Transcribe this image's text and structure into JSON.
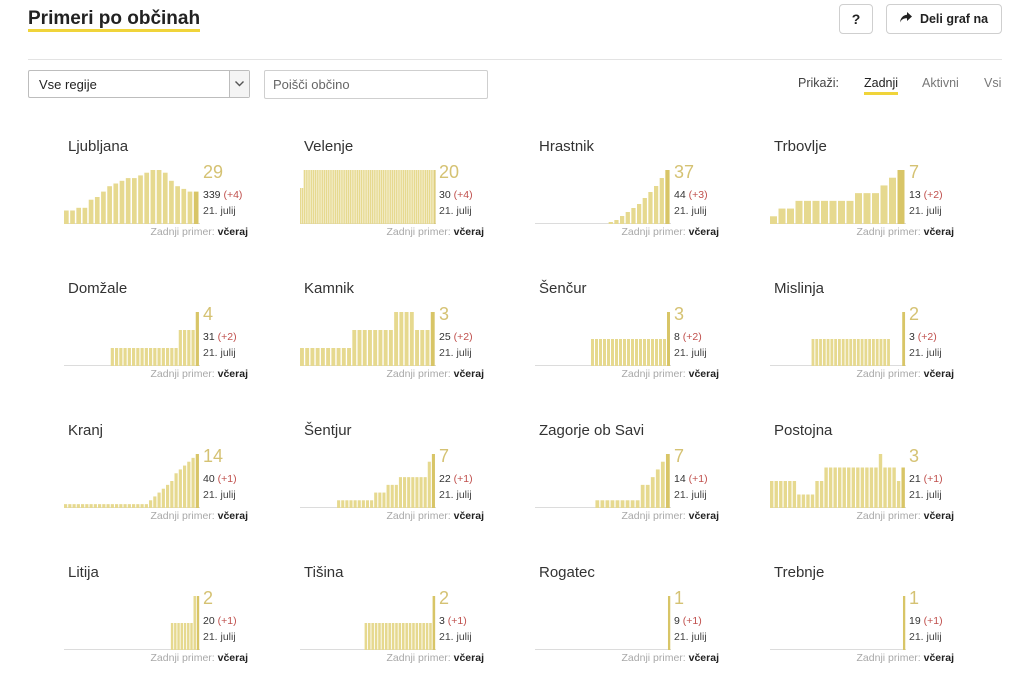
{
  "header": {
    "title": "Primeri po občinah",
    "help_label": "?",
    "share_label": "Deli graf na"
  },
  "filters": {
    "region_value": "Vse regije",
    "search_placeholder": "Poišči občino",
    "show_label": "Prikaži:",
    "show_options": [
      "Zadnji",
      "Aktivni",
      "Vsi"
    ],
    "active_option": "Zadnji"
  },
  "colors": {
    "accent": "#f0d43a",
    "bar": "#d8c567",
    "bar_light": "#e6d98f",
    "delta": "#c0504d"
  },
  "icons": {
    "share": "share-arrow-icon",
    "dropdown": "chevron-down-icon"
  },
  "last_case_label": "Zadnji primer:",
  "municipalities": [
    {
      "name": "Ljubljana",
      "today": "29",
      "total": "339",
      "delta": "(+4)",
      "date": "21. julij",
      "last_case": "včeraj",
      "bars": [
        5,
        5,
        6,
        6,
        9,
        10,
        12,
        14,
        15,
        16,
        17,
        17,
        18,
        19,
        20,
        20,
        19,
        16,
        14,
        13,
        12,
        12
      ]
    },
    {
      "name": "Velenje",
      "today": "20",
      "total": "30",
      "delta": "(+4)",
      "date": "21. julij",
      "last_case": "včeraj",
      "bars": [
        2,
        2,
        3,
        3,
        3,
        3,
        3,
        3,
        3,
        3,
        3,
        3,
        3,
        3,
        3,
        3,
        3,
        3,
        3,
        3,
        3,
        3,
        3,
        3,
        3,
        3,
        3,
        3,
        3,
        3,
        3,
        3,
        3,
        3,
        3,
        3,
        3,
        3,
        3,
        3,
        3,
        3,
        3,
        3,
        3,
        3,
        3,
        3,
        3,
        3,
        3,
        3,
        3,
        3,
        3,
        3,
        3,
        3,
        3,
        3,
        3,
        3,
        3,
        3,
        3,
        3,
        3,
        3,
        3,
        3,
        3,
        3,
        3,
        3
      ]
    },
    {
      "name": "Hrastnik",
      "today": "37",
      "total": "44",
      "delta": "(+3)",
      "date": "21. julij",
      "last_case": "včeraj",
      "bars": [
        0,
        0,
        0,
        0,
        0,
        0,
        0,
        0,
        0,
        0,
        0,
        0,
        0,
        1,
        2,
        4,
        6,
        8,
        10,
        13,
        16,
        19,
        23,
        27
      ]
    },
    {
      "name": "Trbovlje",
      "today": "7",
      "total": "13",
      "delta": "(+2)",
      "date": "21. julij",
      "last_case": "včeraj",
      "bars": [
        1,
        2,
        2,
        3,
        3,
        3,
        3,
        3,
        3,
        3,
        4,
        4,
        4,
        5,
        6,
        7
      ]
    },
    {
      "name": "Domžale",
      "today": "4",
      "total": "31",
      "delta": "(+2)",
      "date": "21. julij",
      "last_case": "včeraj",
      "bars": [
        0,
        0,
        0,
        0,
        0,
        0,
        0,
        0,
        0,
        0,
        0,
        1,
        1,
        1,
        1,
        1,
        1,
        1,
        1,
        1,
        1,
        1,
        1,
        1,
        1,
        1,
        1,
        2,
        2,
        2,
        2,
        3
      ]
    },
    {
      "name": "Kamnik",
      "today": "3",
      "total": "25",
      "delta": "(+2)",
      "date": "21. julij",
      "last_case": "včeraj",
      "bars": [
        1,
        1,
        1,
        1,
        1,
        1,
        1,
        1,
        1,
        1,
        2,
        2,
        2,
        2,
        2,
        2,
        2,
        2,
        3,
        3,
        3,
        3,
        2,
        2,
        2,
        3
      ]
    },
    {
      "name": "Šenčur",
      "today": "3",
      "total": "8",
      "delta": "(+2)",
      "date": "21. julij",
      "last_case": "včeraj",
      "bars": [
        0,
        0,
        0,
        0,
        0,
        0,
        0,
        0,
        0,
        0,
        0,
        0,
        0,
        0,
        1,
        1,
        1,
        1,
        1,
        1,
        1,
        1,
        1,
        1,
        1,
        1,
        1,
        1,
        1,
        1,
        1,
        1,
        1,
        2
      ]
    },
    {
      "name": "Mislinja",
      "today": "2",
      "total": "3",
      "delta": "(+2)",
      "date": "21. julij",
      "last_case": "včeraj",
      "bars": [
        0,
        0,
        0,
        0,
        0,
        0,
        0,
        0,
        0,
        0,
        0,
        1,
        1,
        1,
        1,
        1,
        1,
        1,
        1,
        1,
        1,
        1,
        1,
        1,
        1,
        1,
        1,
        1,
        1,
        1,
        1,
        1,
        0,
        0,
        0,
        2
      ]
    },
    {
      "name": "Kranj",
      "today": "14",
      "total": "40",
      "delta": "(+1)",
      "date": "21. julij",
      "last_case": "včeraj",
      "bars": [
        1,
        1,
        1,
        1,
        1,
        1,
        1,
        1,
        1,
        1,
        1,
        1,
        1,
        1,
        1,
        1,
        1,
        1,
        1,
        1,
        2,
        3,
        4,
        5,
        6,
        7,
        9,
        10,
        11,
        12,
        13,
        14
      ]
    },
    {
      "name": "Šentjur",
      "today": "7",
      "total": "22",
      "delta": "(+1)",
      "date": "21. julij",
      "last_case": "včeraj",
      "bars": [
        0,
        0,
        0,
        0,
        0,
        0,
        0,
        0,
        0,
        1,
        1,
        1,
        1,
        1,
        1,
        1,
        1,
        1,
        2,
        2,
        2,
        3,
        3,
        3,
        4,
        4,
        4,
        4,
        4,
        4,
        4,
        6,
        7
      ]
    },
    {
      "name": "Zagorje ob Savi",
      "today": "7",
      "total": "14",
      "delta": "(+1)",
      "date": "21. julij",
      "last_case": "včeraj",
      "bars": [
        0,
        0,
        0,
        0,
        0,
        0,
        0,
        0,
        0,
        0,
        0,
        0,
        1,
        1,
        1,
        1,
        1,
        1,
        1,
        1,
        1,
        3,
        3,
        4,
        5,
        6,
        7
      ]
    },
    {
      "name": "Postojna",
      "today": "3",
      "total": "21",
      "delta": "(+1)",
      "date": "21. julij",
      "last_case": "včeraj",
      "bars": [
        2,
        2,
        2,
        2,
        2,
        2,
        1,
        1,
        1,
        1,
        2,
        2,
        3,
        3,
        3,
        3,
        3,
        3,
        3,
        3,
        3,
        3,
        3,
        3,
        4,
        3,
        3,
        3,
        2,
        3
      ]
    },
    {
      "name": "Litija",
      "today": "2",
      "total": "20",
      "delta": "(+1)",
      "date": "21. julij",
      "last_case": "včeraj",
      "bars": [
        0,
        0,
        0,
        0,
        0,
        0,
        0,
        0,
        0,
        0,
        0,
        0,
        0,
        0,
        0,
        0,
        0,
        0,
        0,
        0,
        0,
        0,
        0,
        0,
        0,
        0,
        0,
        0,
        0,
        0,
        0,
        0,
        0,
        1,
        1,
        1,
        1,
        1,
        1,
        1,
        2,
        2
      ]
    },
    {
      "name": "Tišina",
      "today": "2",
      "total": "3",
      "delta": "(+1)",
      "date": "21. julij",
      "last_case": "včeraj",
      "bars": [
        0,
        0,
        0,
        0,
        0,
        0,
        0,
        0,
        0,
        0,
        0,
        0,
        0,
        0,
        0,
        0,
        0,
        0,
        0,
        1,
        1,
        1,
        1,
        1,
        1,
        1,
        1,
        1,
        1,
        1,
        1,
        1,
        1,
        1,
        1,
        1,
        1,
        1,
        1,
        2
      ]
    },
    {
      "name": "Rogatec",
      "today": "1",
      "total": "9",
      "delta": "(+1)",
      "date": "21. julij",
      "last_case": "včeraj",
      "bars": [
        0,
        0,
        0,
        0,
        0,
        0,
        0,
        0,
        0,
        0,
        0,
        0,
        0,
        0,
        0,
        0,
        0,
        0,
        0,
        0,
        0,
        0,
        0,
        0,
        0,
        0,
        0,
        0,
        0,
        0,
        0,
        0,
        0,
        0,
        0,
        0,
        0,
        0,
        0,
        0,
        0,
        0,
        0,
        0,
        1
      ]
    },
    {
      "name": "Trebnje",
      "today": "1",
      "total": "19",
      "delta": "(+1)",
      "date": "21. julij",
      "last_case": "včeraj",
      "bars": [
        0,
        0,
        0,
        0,
        0,
        0,
        0,
        0,
        0,
        0,
        0,
        0,
        0,
        0,
        0,
        0,
        0,
        0,
        0,
        0,
        0,
        0,
        0,
        0,
        0,
        0,
        0,
        0,
        0,
        0,
        0,
        0,
        0,
        0,
        0,
        0,
        0,
        0,
        0,
        0,
        0,
        0,
        0,
        0,
        1
      ]
    }
  ]
}
